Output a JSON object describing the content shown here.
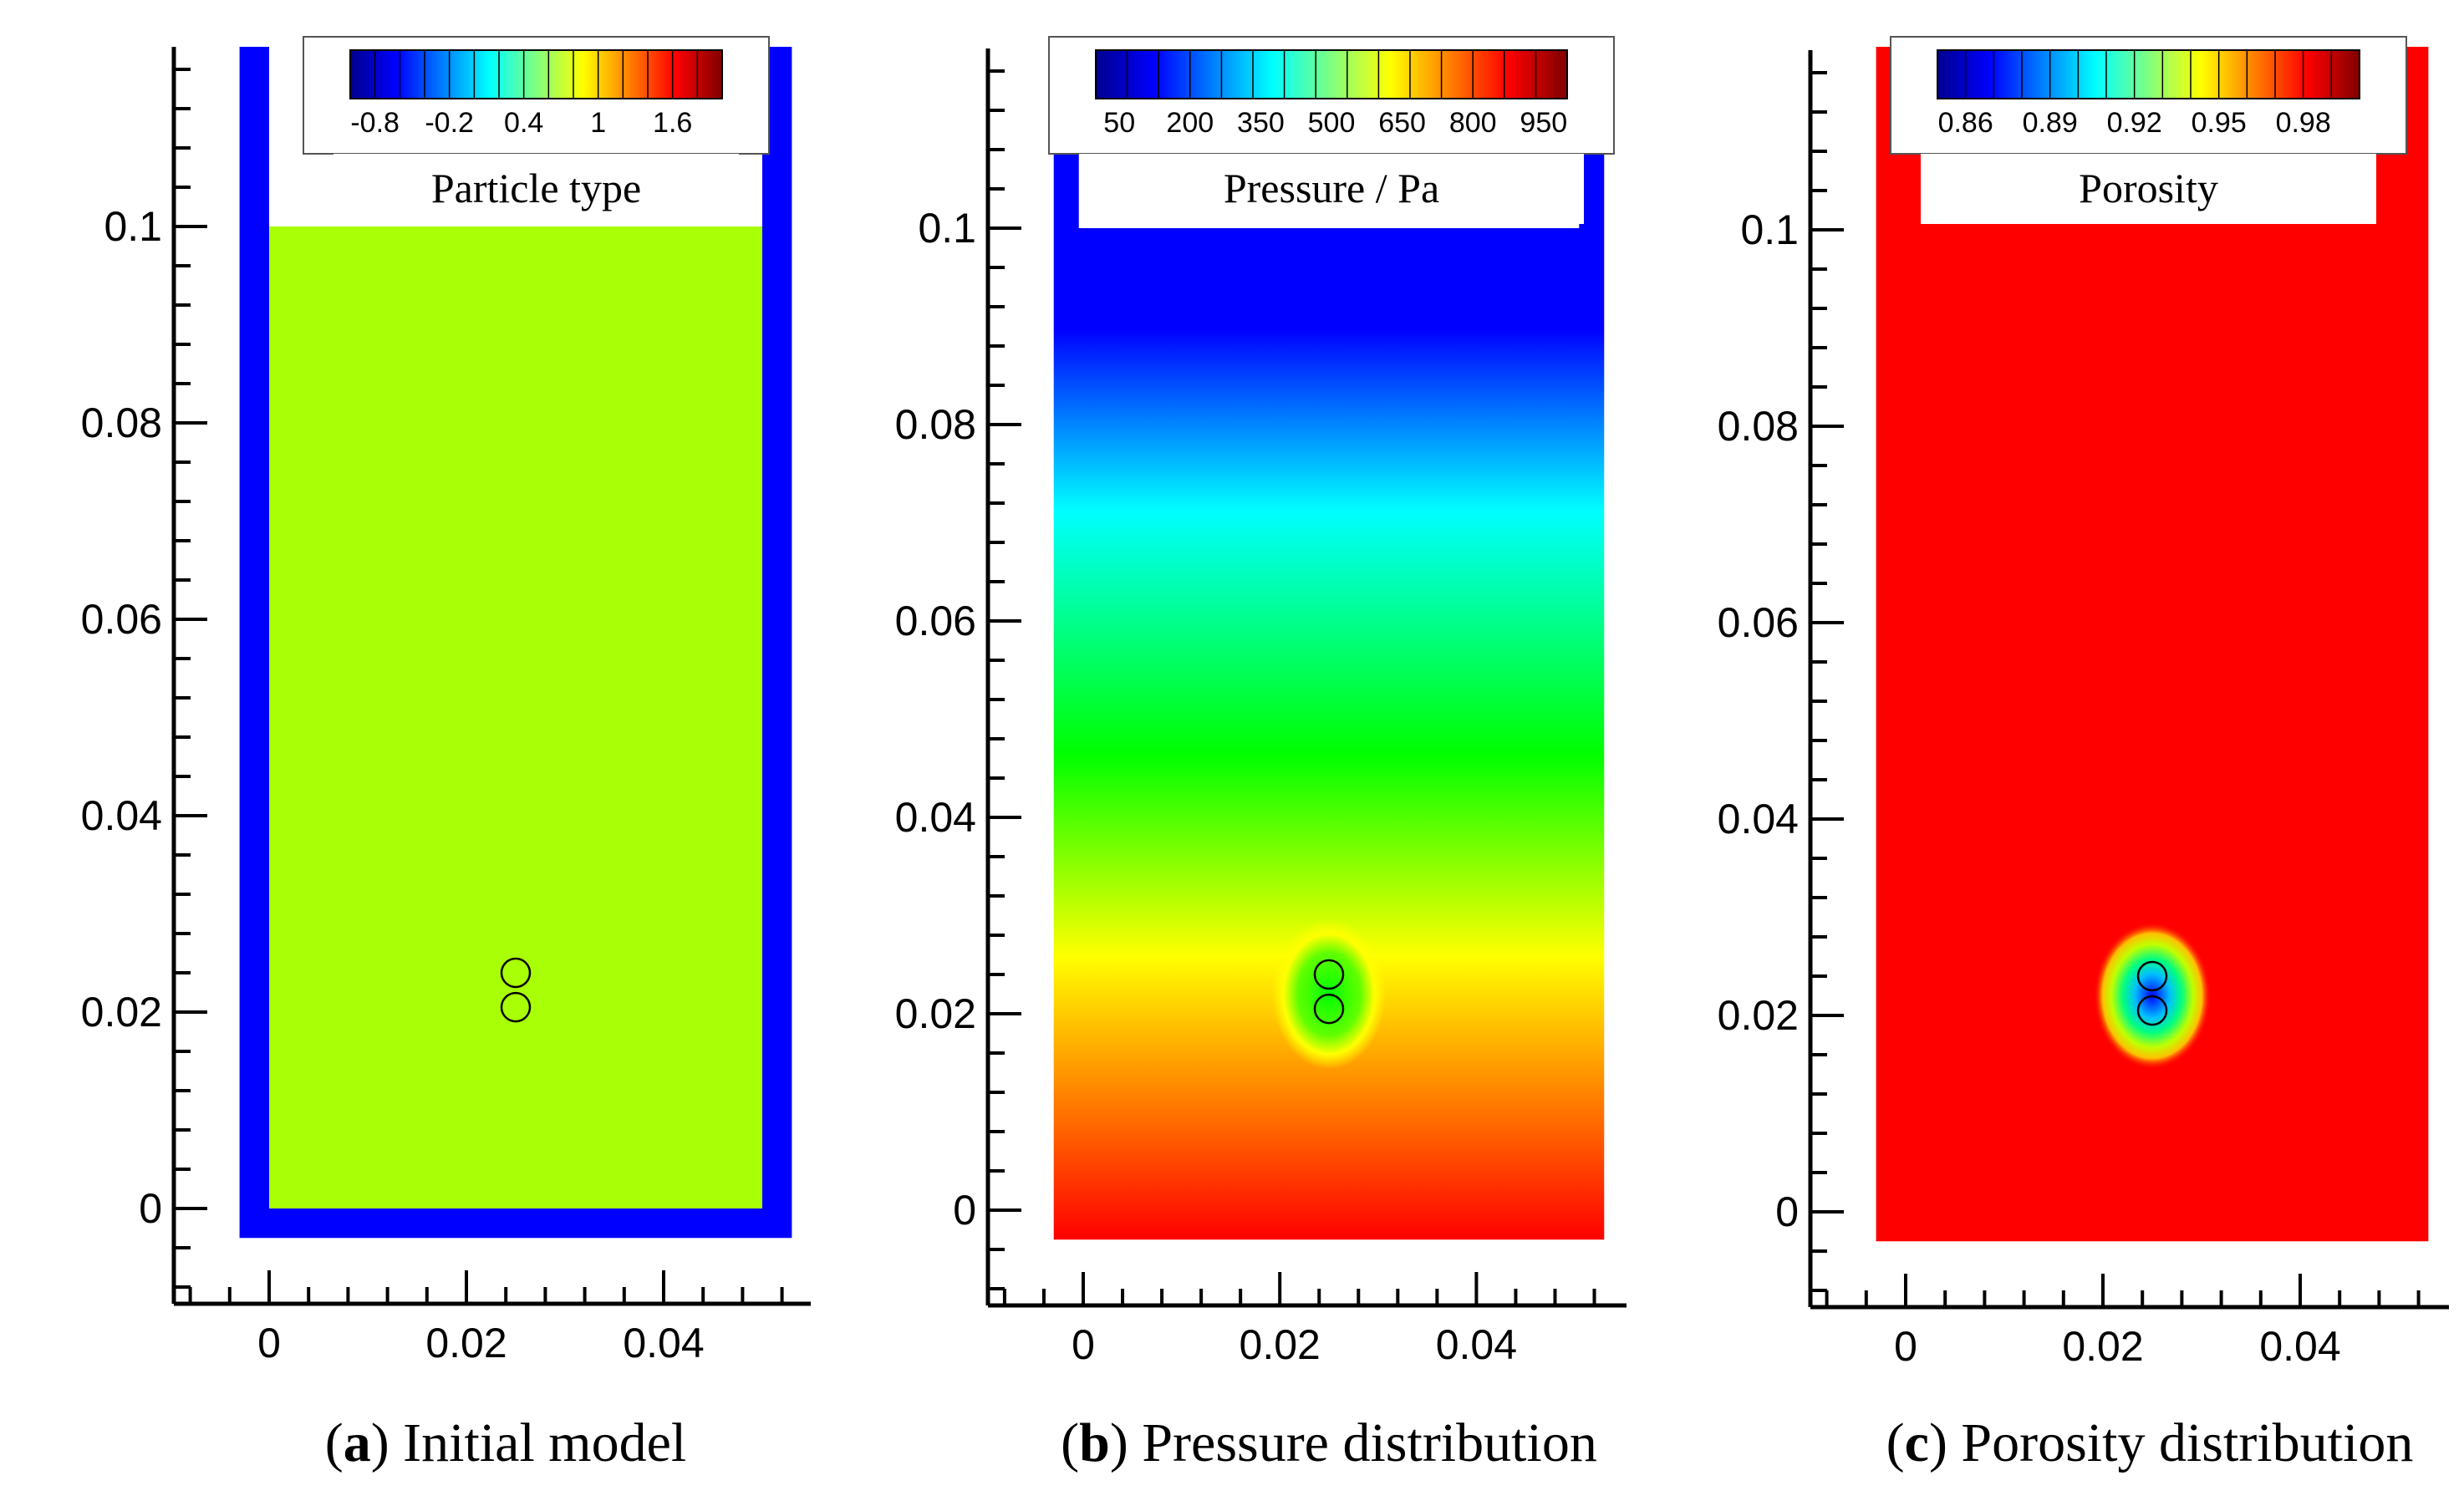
{
  "chart_data": [
    {
      "type": "heatmap",
      "panel_letter": "a",
      "caption": "Initial model",
      "legend_title": "Particle type",
      "colorbar_ticks": [
        "-0.8",
        "-0.2",
        "0.4",
        "1",
        "1.6"
      ],
      "colorbar_range": [
        -1,
        2
      ],
      "x_ticks": [
        "0",
        "0.02",
        "0.04"
      ],
      "y_ticks": [
        "0",
        "0.02",
        "0.04",
        "0.06",
        "0.08",
        "0.1"
      ],
      "xlim": [
        -0.01,
        0.055
      ],
      "ylim": [
        -0.01,
        0.118
      ],
      "fluid_color": "#a8ff06",
      "wall_color": "#0000ff",
      "fluid_extent": {
        "x": [
          0,
          0.05
        ],
        "y": [
          0,
          0.1
        ]
      },
      "wall_extent": {
        "x": [
          -0.003,
          0.053
        ],
        "y": [
          -0.003,
          0.118
        ]
      },
      "particles": [
        {
          "x": 0.025,
          "y": 0.024
        },
        {
          "x": 0.025,
          "y": 0.0205
        }
      ]
    },
    {
      "type": "heatmap",
      "panel_letter": "b",
      "caption": "Pressure distribution",
      "legend_title": "Pressure / Pa",
      "colorbar_ticks": [
        "50",
        "200",
        "350",
        "500",
        "650",
        "800",
        "950"
      ],
      "colorbar_range": [
        0,
        1000
      ],
      "x_ticks": [
        "0",
        "0.02",
        "0.04"
      ],
      "y_ticks": [
        "0",
        "0.02",
        "0.04",
        "0.06",
        "0.08",
        "0.1"
      ],
      "xlim": [
        -0.01,
        0.055
      ],
      "ylim": [
        -0.01,
        0.118
      ],
      "field": "hydrostatic pressure increasing with depth",
      "pressure_at_top_pa": 0,
      "pressure_at_bottom_pa": 1000,
      "particles": [
        {
          "x": 0.025,
          "y": 0.024
        },
        {
          "x": 0.025,
          "y": 0.0205
        }
      ]
    },
    {
      "type": "heatmap",
      "panel_letter": "c",
      "caption": "Porosity distribution",
      "legend_title": "Porosity",
      "colorbar_ticks": [
        "0.86",
        "0.89",
        "0.92",
        "0.95",
        "0.98"
      ],
      "colorbar_range": [
        0.85,
        1.0
      ],
      "x_ticks": [
        "0",
        "0.02",
        "0.04"
      ],
      "y_ticks": [
        "0",
        "0.02",
        "0.04",
        "0.06",
        "0.08",
        "0.1"
      ],
      "xlim": [
        -0.01,
        0.055
      ],
      "ylim": [
        -0.01,
        0.118
      ],
      "background_porosity": 1.0,
      "min_porosity_near_particles": 0.85,
      "particles": [
        {
          "x": 0.025,
          "y": 0.024
        },
        {
          "x": 0.025,
          "y": 0.0205
        }
      ]
    }
  ]
}
